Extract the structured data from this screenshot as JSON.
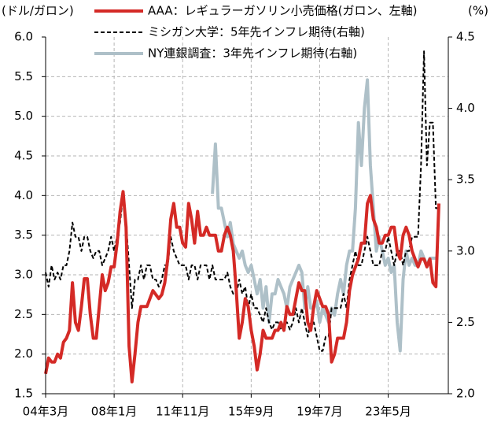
{
  "chart_data": {
    "type": "line",
    "y_label": "(ドル/ガロン)",
    "y2_label": "(%)",
    "grid": true,
    "legend": "top",
    "categories": [
      "04年3月",
      null,
      null,
      null,
      null,
      null,
      null,
      null,
      null,
      null,
      null,
      null,
      null,
      null,
      null,
      null,
      null,
      null,
      null,
      null,
      null,
      null,
      null,
      "08年1月",
      null,
      null,
      null,
      null,
      null,
      null,
      null,
      null,
      null,
      null,
      null,
      null,
      null,
      null,
      null,
      null,
      null,
      null,
      null,
      null,
      null,
      null,
      "11年11月",
      null,
      null,
      null,
      null,
      null,
      null,
      null,
      null,
      null,
      null,
      null,
      null,
      null,
      null,
      null,
      null,
      null,
      null,
      null,
      null,
      null,
      null,
      "15年9月",
      null,
      null,
      null,
      null,
      null,
      null,
      null,
      null,
      null,
      null,
      null,
      null,
      null,
      null,
      null,
      null,
      null,
      null,
      null,
      null,
      null,
      null,
      "19年7月",
      null,
      null,
      null,
      null,
      null,
      null,
      null,
      null,
      null,
      null,
      null,
      null,
      null,
      null,
      null,
      null,
      null,
      null,
      null,
      null,
      null,
      null,
      "23年5月",
      null,
      null,
      null,
      null,
      null,
      null,
      null,
      null,
      null,
      null,
      null,
      null,
      null,
      null,
      null,
      null,
      null
    ],
    "ylim": [
      1.5,
      6.0
    ],
    "yticks": [
      1.5,
      {
        "value": 2,
        "label": "2.0"
      },
      2.5,
      {
        "value": 3,
        "label": "3.0"
      },
      3.5,
      {
        "value": 4,
        "label": "4.0"
      },
      4.5,
      {
        "value": 5,
        "label": "5.0"
      },
      5.5,
      {
        "value": 6,
        "label": "6.0"
      }
    ],
    "y2lim": [
      2.0,
      4.5
    ],
    "y2ticks": [
      {
        "value": 2,
        "label": "2.0"
      },
      2.5,
      {
        "value": 3,
        "label": "3.0"
      },
      3.5,
      {
        "value": 4,
        "label": "4.0"
      },
      4.5
    ],
    "series": [
      {
        "name": "AAA：レギュラーガソリン小売価格(ガロン、左軸)",
        "color": "#d42a26",
        "width": 4,
        "dash": "none",
        "axis": "y",
        "values": [
          1.75,
          1.95,
          1.9,
          1.9,
          2.0,
          1.95,
          2.15,
          2.2,
          2.3,
          2.9,
          2.4,
          2.3,
          2.6,
          2.95,
          2.95,
          2.5,
          2.2,
          2.2,
          2.6,
          3.0,
          2.8,
          2.9,
          3.1,
          3.1,
          3.4,
          3.8,
          4.05,
          3.6,
          2.1,
          1.65,
          2.0,
          2.4,
          2.6,
          2.6,
          2.6,
          2.7,
          2.8,
          2.75,
          2.7,
          2.75,
          2.9,
          3.2,
          3.7,
          3.9,
          3.6,
          3.6,
          3.4,
          3.35,
          3.9,
          3.7,
          3.4,
          3.8,
          3.5,
          3.5,
          3.6,
          3.5,
          3.5,
          3.5,
          3.3,
          3.3,
          3.5,
          3.6,
          3.5,
          3.3,
          2.8,
          2.2,
          2.4,
          2.7,
          2.6,
          2.3,
          2.1,
          1.8,
          2.0,
          2.3,
          2.2,
          2.2,
          2.2,
          2.3,
          2.3,
          2.4,
          2.3,
          2.6,
          2.5,
          2.5,
          2.7,
          2.9,
          2.8,
          2.8,
          2.4,
          2.3,
          2.6,
          2.8,
          2.7,
          2.6,
          2.6,
          2.5,
          1.9,
          2.0,
          2.2,
          2.2,
          2.2,
          2.4,
          2.8,
          3.0,
          3.1,
          3.2,
          3.4,
          3.4,
          3.9,
          4.0,
          3.7,
          3.6,
          3.4,
          3.4,
          3.5,
          3.5,
          3.6,
          3.6,
          3.3,
          3.2,
          3.5,
          3.6,
          3.5,
          3.3,
          3.2,
          3.1,
          3.2,
          3.2,
          3.1,
          3.2,
          2.9,
          2.85,
          3.9
        ]
      },
      {
        "name": "ミシガン大学：5年先インフレ期待(右軸)",
        "color": "#000000",
        "width": 2,
        "dash": "5 3",
        "axis": "y2",
        "values": [
          2.85,
          2.75,
          2.9,
          2.8,
          2.85,
          2.8,
          2.9,
          2.9,
          3.0,
          3.2,
          3.1,
          3.1,
          3.0,
          3.1,
          3.1,
          3.0,
          2.95,
          3.0,
          3.0,
          2.9,
          2.95,
          3.0,
          3.1,
          3.0,
          3.1,
          3.2,
          3.4,
          3.2,
          2.9,
          2.6,
          2.8,
          2.8,
          2.9,
          2.8,
          2.9,
          2.9,
          2.8,
          2.8,
          2.75,
          2.8,
          2.9,
          2.9,
          3.1,
          3.0,
          2.95,
          2.9,
          2.9,
          2.9,
          2.8,
          2.9,
          2.9,
          2.8,
          2.9,
          2.9,
          2.9,
          2.8,
          2.9,
          2.8,
          2.8,
          2.8,
          2.8,
          2.85,
          2.75,
          2.7,
          2.7,
          2.8,
          2.7,
          2.75,
          2.6,
          2.7,
          2.6,
          2.6,
          2.55,
          2.5,
          2.6,
          2.5,
          2.45,
          2.5,
          2.5,
          2.45,
          2.5,
          2.5,
          2.45,
          2.5,
          2.6,
          2.5,
          2.6,
          2.5,
          2.4,
          2.5,
          2.5,
          2.4,
          2.3,
          2.3,
          2.4,
          2.4,
          2.6,
          2.6,
          2.6,
          2.6,
          2.7,
          2.6,
          2.8,
          2.9,
          3.0,
          2.9,
          2.9,
          3.0,
          3.1,
          3.0,
          2.9,
          2.9,
          2.9,
          3.0,
          3.0,
          3.1,
          3.0,
          2.9,
          3.0,
          3.0,
          2.9,
          3.0,
          3.0,
          3.1,
          3.1,
          3.1,
          3.6,
          4.4,
          3.6,
          3.9,
          3.9,
          3.3,
          3.3
        ]
      },
      {
        "name": "NY連銀調査：3年先インフレ期待(右軸)",
        "color": "#aec0c8",
        "width": 4,
        "dash": "none",
        "axis": "y2",
        "values": [
          null,
          null,
          null,
          null,
          null,
          null,
          null,
          null,
          null,
          null,
          null,
          null,
          null,
          null,
          null,
          null,
          null,
          null,
          null,
          null,
          null,
          null,
          null,
          null,
          null,
          null,
          null,
          null,
          null,
          null,
          null,
          null,
          null,
          null,
          null,
          null,
          null,
          null,
          null,
          null,
          null,
          null,
          null,
          null,
          null,
          null,
          null,
          null,
          null,
          null,
          null,
          null,
          null,
          null,
          null,
          null,
          3.4,
          3.75,
          3.3,
          3.3,
          3.2,
          3.1,
          3.2,
          3.05,
          3.0,
          2.95,
          3.0,
          2.9,
          2.85,
          2.9,
          2.8,
          2.7,
          2.8,
          2.6,
          2.75,
          2.5,
          2.7,
          2.7,
          2.8,
          2.75,
          2.7,
          2.6,
          2.75,
          2.8,
          2.85,
          2.9,
          2.85,
          2.6,
          2.75,
          2.6,
          2.6,
          2.65,
          2.5,
          2.6,
          2.55,
          2.5,
          2.6,
          2.55,
          2.7,
          2.8,
          2.7,
          2.9,
          3.0,
          3.0,
          3.3,
          3.9,
          3.6,
          4.0,
          4.2,
          3.6,
          3.3,
          3.0,
          3.1,
          3.0,
          2.9,
          2.95,
          2.85,
          2.9,
          2.5,
          2.3,
          2.8,
          3.0,
          2.9,
          2.95,
          2.9,
          2.9,
          3.0,
          2.95,
          2.9,
          2.95,
          2.95,
          2.95,
          null
        ]
      }
    ]
  }
}
